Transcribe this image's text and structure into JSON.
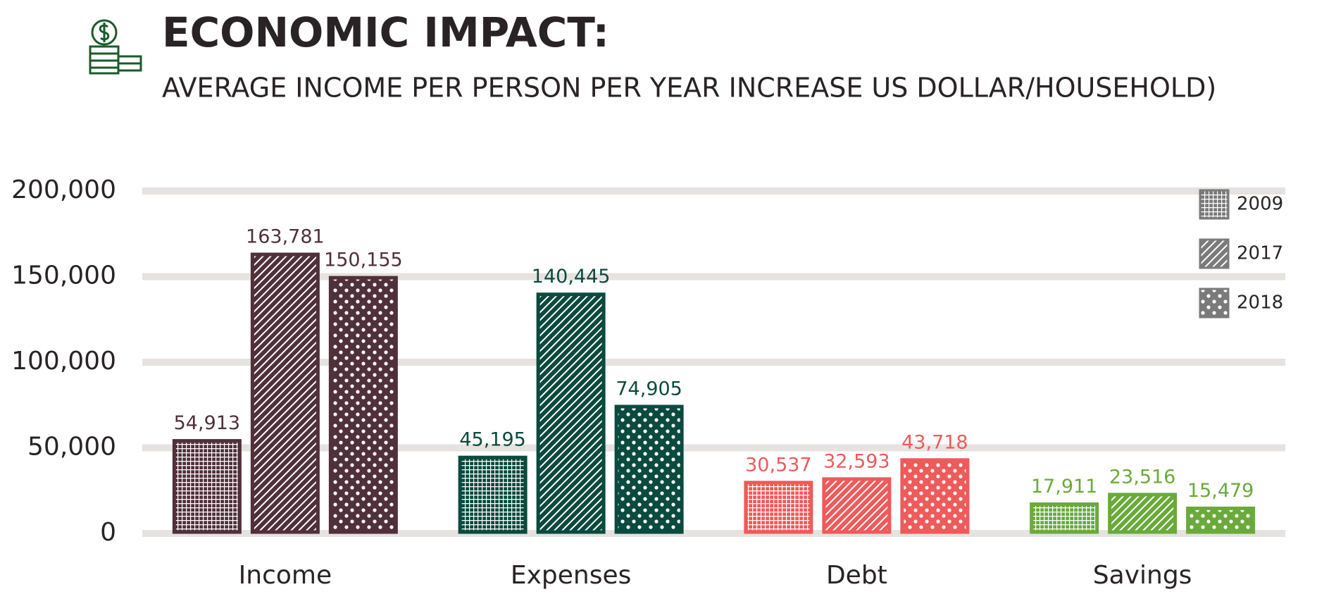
{
  "chart_data": {
    "type": "bar",
    "title": "ECONOMIC IMPACT:",
    "subtitle": "AVERAGE INCOME PER PERSON PER YEAR INCREASE US DOLLAR/HOUSEHOLD)",
    "categories": [
      "Income",
      "Expenses",
      "Debt",
      "Savings"
    ],
    "category_colors": [
      "#50303a",
      "#0b4a3e",
      "#ef5a5a",
      "#6aaa3a"
    ],
    "legend_color": "#7a7a7a",
    "legend_position": "top-right",
    "grid": true,
    "ylim": [
      0,
      200000
    ],
    "yticks": [
      0,
      {
        "value": 50000,
        "label": "50,000"
      },
      {
        "value": 100000,
        "label": "100,000"
      },
      {
        "value": 150000,
        "label": "150,000"
      },
      {
        "value": 200000,
        "label": "200,000"
      }
    ],
    "series": [
      {
        "name": "2009",
        "pattern": "grid",
        "values": [
          54913,
          45195,
          30537,
          17911
        ],
        "value_labels": [
          "54,913",
          "45,195",
          "30,537",
          "17,911"
        ]
      },
      {
        "name": "2017",
        "pattern": "diagonal",
        "values": [
          163781,
          140445,
          32593,
          23516
        ],
        "value_labels": [
          "163,781",
          "140,445",
          "32,593",
          "23,516"
        ]
      },
      {
        "name": "2018",
        "pattern": "dots",
        "values": [
          150155,
          74905,
          43718,
          15479
        ],
        "value_labels": [
          "150,155",
          "74,905",
          "43,718",
          "15,479"
        ]
      }
    ]
  }
}
